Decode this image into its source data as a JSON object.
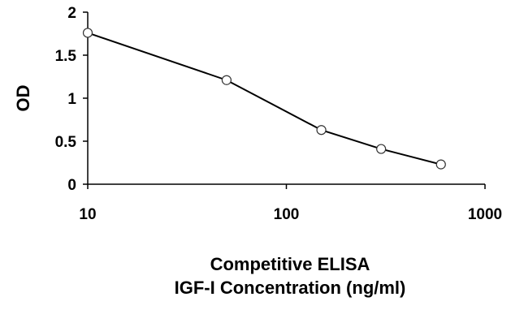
{
  "chart_data": {
    "type": "scatter",
    "xscale": "log",
    "xlim": [
      10,
      1000
    ],
    "ylim": [
      0,
      2
    ],
    "xticks": [
      "10",
      "100",
      "1000"
    ],
    "xtick_values": [
      10,
      100,
      1000
    ],
    "yticks": [
      "0",
      "0.5",
      "1",
      "1.5",
      "2"
    ],
    "ytick_values": [
      0,
      0.5,
      1,
      1.5,
      2
    ],
    "xlabel_lines": [
      "Competitive ELISA",
      "IGF-I Concentration (ng/ml)"
    ],
    "ylabel": "OD",
    "grid": false,
    "series": [
      {
        "x": [
          10,
          50,
          150,
          300,
          600
        ],
        "y": [
          1.76,
          1.21,
          0.63,
          0.41,
          0.23
        ],
        "line_color": "#000000",
        "marker": "open-circle"
      }
    ]
  }
}
